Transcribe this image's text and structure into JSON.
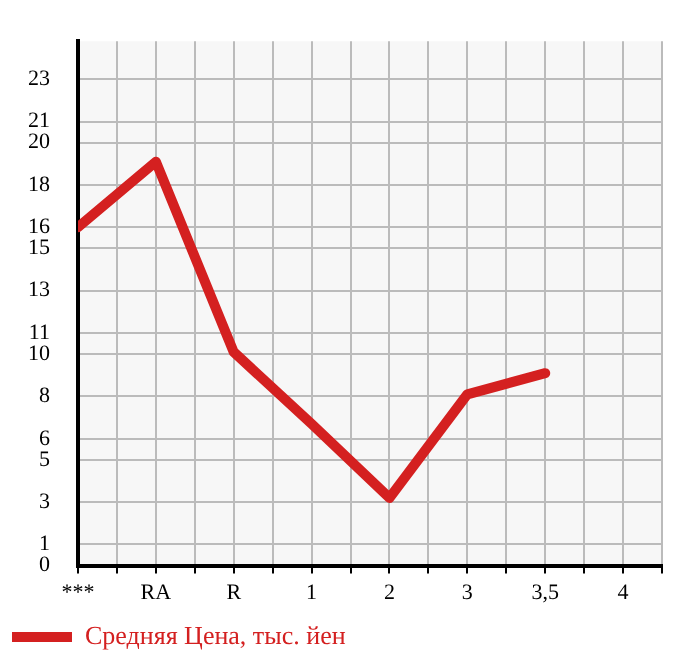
{
  "chart_data": {
    "type": "line",
    "categories": [
      "***",
      "RA",
      "R",
      "1",
      "2",
      "3",
      "3,5",
      "4"
    ],
    "series": [
      {
        "name": "Средняя Цена, тыс. йен",
        "color": "#d42020",
        "values": [
          16.0,
          19.1,
          10.1,
          6.7,
          3.2,
          8.1,
          9.1,
          null
        ]
      }
    ],
    "ylim": [
      0,
      24.8
    ],
    "yticks": [
      0,
      1,
      3,
      5,
      6,
      8,
      10,
      11,
      13,
      15,
      16,
      18,
      20,
      21,
      23
    ],
    "grid": true,
    "legend": "bottom left",
    "marker": "none",
    "line_style": "solid"
  }
}
